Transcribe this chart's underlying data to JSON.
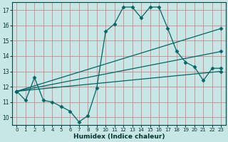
{
  "xlabel": "Humidex (Indice chaleur)",
  "background_color": "#c8e6e6",
  "grid_color": "#cc8888",
  "line_color": "#006666",
  "xlim": [
    -0.5,
    23.5
  ],
  "ylim": [
    9.5,
    17.5
  ],
  "yticks": [
    10,
    11,
    12,
    13,
    14,
    15,
    16,
    17
  ],
  "xticks": [
    0,
    1,
    2,
    3,
    4,
    5,
    6,
    7,
    8,
    9,
    10,
    11,
    12,
    13,
    14,
    15,
    16,
    17,
    18,
    19,
    20,
    21,
    22,
    23
  ],
  "curve_x": [
    0,
    1,
    2,
    3,
    4,
    5,
    6,
    7,
    8,
    9,
    10,
    11,
    12,
    13,
    14,
    15,
    16,
    17,
    18,
    19,
    20,
    21,
    22,
    23
  ],
  "curve_y": [
    11.7,
    11.1,
    12.6,
    11.1,
    11.0,
    10.7,
    10.4,
    9.7,
    10.1,
    11.9,
    15.6,
    16.1,
    17.2,
    17.2,
    16.5,
    17.2,
    17.2,
    15.8,
    14.3,
    13.6,
    13.3,
    12.4,
    13.2,
    13.2
  ],
  "line1_x": [
    0,
    23
  ],
  "line1_y": [
    11.7,
    13.0
  ],
  "line2_x": [
    0,
    23
  ],
  "line2_y": [
    11.7,
    14.3
  ],
  "line3_x": [
    0,
    23
  ],
  "line3_y": [
    11.7,
    15.8
  ]
}
